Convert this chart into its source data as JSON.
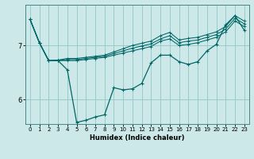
{
  "xlabel": "Humidex (Indice chaleur)",
  "bg_color": "#cce8e8",
  "line_color": "#006666",
  "grid_color": "#99cccc",
  "x_ticks": [
    0,
    1,
    2,
    3,
    4,
    5,
    6,
    7,
    8,
    9,
    10,
    11,
    12,
    13,
    14,
    15,
    16,
    17,
    18,
    19,
    20,
    21,
    22,
    23
  ],
  "y_ticks": [
    6,
    7
  ],
  "ylim": [
    5.55,
    7.75
  ],
  "xlim": [
    -0.5,
    23.5
  ],
  "line_main": [
    7.48,
    7.05,
    6.72,
    6.72,
    6.55,
    5.58,
    5.62,
    5.68,
    5.72,
    6.22,
    6.18,
    6.2,
    6.3,
    6.68,
    6.82,
    6.82,
    6.7,
    6.65,
    6.7,
    6.9,
    7.02,
    7.38,
    7.55,
    7.28
  ],
  "line_upper1": [
    7.48,
    7.05,
    6.72,
    6.72,
    6.72,
    6.72,
    6.74,
    6.76,
    6.78,
    6.82,
    6.86,
    6.9,
    6.94,
    6.98,
    7.08,
    7.12,
    7.0,
    7.02,
    7.05,
    7.1,
    7.15,
    7.25,
    7.45,
    7.35
  ],
  "line_upper2": [
    7.48,
    7.05,
    6.72,
    6.72,
    6.74,
    6.74,
    6.76,
    6.78,
    6.8,
    6.85,
    6.9,
    6.95,
    6.99,
    7.03,
    7.12,
    7.18,
    7.05,
    7.08,
    7.1,
    7.15,
    7.2,
    7.3,
    7.5,
    7.4
  ],
  "line_upper3": [
    7.48,
    7.05,
    6.72,
    6.73,
    6.76,
    6.76,
    6.78,
    6.8,
    6.82,
    6.88,
    6.94,
    7.0,
    7.04,
    7.08,
    7.18,
    7.24,
    7.1,
    7.13,
    7.15,
    7.2,
    7.25,
    7.35,
    7.55,
    7.45
  ]
}
